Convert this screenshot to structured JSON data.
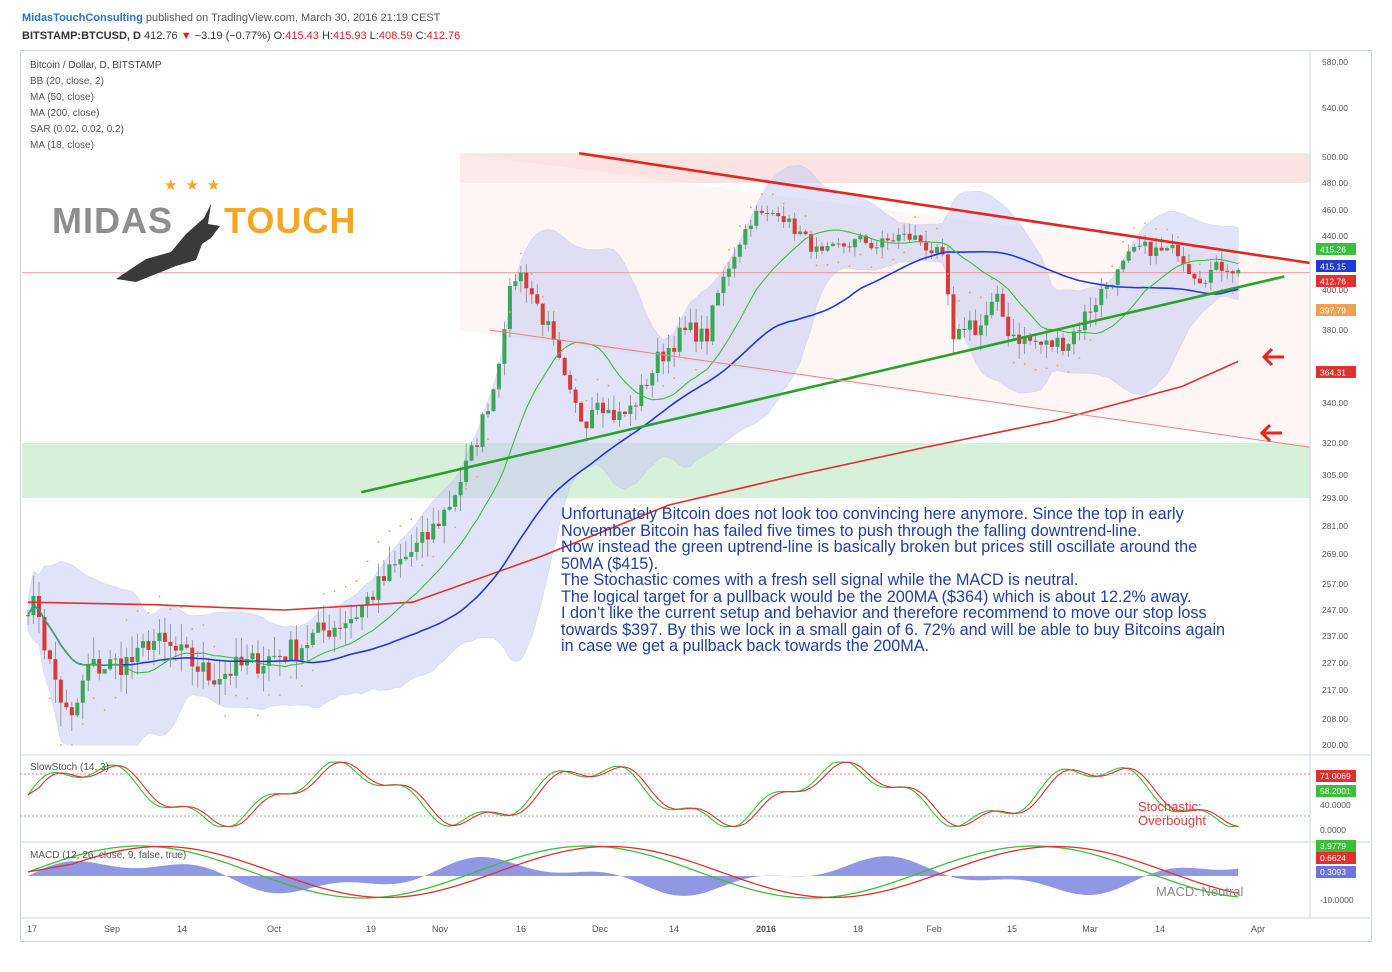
{
  "header": {
    "author": "MidasTouchConsulting",
    "published": "published on TradingView.com, March 30, 2016 21:19 CEST",
    "symbol": "BITSTAMP:BTCUSD, D",
    "last": "412.76",
    "change_symbol": "▼",
    "change": "−3.19 (−0.77%)",
    "o_label": "O:",
    "o_value": "415.43",
    "h_label": "H:",
    "h_value": "415.93",
    "l_label": "L:",
    "l_value": "408.59",
    "c_label": "C:",
    "c_value": "412.76"
  },
  "legend": {
    "title": "Bitcoin / Dollar, D, BITSTAMP",
    "items": [
      "BB (20, close, 2)",
      "MA (50, close)",
      "MA (200, close)",
      "SAR (0.02, 0.02, 0.2)",
      "MA (18, close)"
    ]
  },
  "logo": {
    "left": "MIDAS",
    "right": "TOUCH",
    "stars": "★★★"
  },
  "annotation": [
    "Unfortunately Bitcoin does not look too convincing here anymore. Since the top in early November Bitcoin has failed five times to push through the falling downtrend-line.",
    "Now instead the green uptrend-line is basically broken but prices still oscillate around the 50MA ($415).",
    "The Stochastic comes with a fresh sell signal while the MACD is neutral.",
    "The logical target for a pullback would be the 200MA ($364) which is about 12.2% away.",
    "I don't like the current setup and behavior and therefore recommend to move our stop loss towards $397. By this we lock in a small gain of 6. 72% and will be able to buy Bitcoins again in case we get a pullback back towards the 200MA."
  ],
  "stoch": {
    "label": "SlowStoch (14, 3)",
    "note_line1": "Stochastic:",
    "note_line2": "Overbought"
  },
  "macd": {
    "label": "MACD (12, 26, close, 9, false, true)",
    "note": "MACD: Neutral"
  },
  "colors": {
    "up": "#3aa757",
    "down": "#d83a3a",
    "ma50": "#1f3bd6",
    "ma200": "#e03030",
    "ma18": "#3bbf3b",
    "bb_fill": "#c9cdf3",
    "resistance": "#e8251b",
    "support": "#2aa22a",
    "zone_red": "#fbdcdc",
    "zone_green": "#d3eed6",
    "sar": "#f0a050",
    "annotation": "#1e3fa5"
  },
  "chart_data": {
    "type": "candlestick",
    "title": "Bitcoin / Dollar, D, BITSTAMP",
    "ylim": [
      200,
      580
    ],
    "y_ticks": [
      "580.00",
      "540.00",
      "500.00",
      "480.00",
      "460.00",
      "440.00",
      "420.00",
      "400.00",
      "380.00",
      "360.00",
      "340.00",
      "320.00",
      "305.00",
      "293.00",
      "281.00",
      "269.00",
      "257.00",
      "247.00",
      "237.00",
      "227.00",
      "217.00",
      "208.00",
      "200.00"
    ],
    "x_ticks": [
      "17",
      "Sep",
      "14",
      "Oct",
      "19",
      "Nov",
      "16",
      "Dec",
      "14",
      "2016",
      "18",
      "Feb",
      "15",
      "Mar",
      "14",
      "Apr"
    ],
    "price_labels": [
      {
        "text": "415.26",
        "value": 415.26,
        "color": "#3bbf3b"
      },
      {
        "text": "415.15",
        "value": 415.15,
        "color": "#1f3bd6"
      },
      {
        "text": "412.76",
        "value": 412.76,
        "color": "#e03030"
      },
      {
        "text": "397.79",
        "value": 397.79,
        "color": "#f0a050"
      },
      {
        "text": "364.31",
        "value": 364.31,
        "color": "#e03030"
      }
    ],
    "trend_lines": [
      {
        "name": "resistance",
        "from": [
          0.43,
          503
        ],
        "to": [
          1.0,
          420
        ]
      },
      {
        "name": "support",
        "from": [
          0.26,
          296
        ],
        "to": [
          0.98,
          410
        ]
      }
    ],
    "zones": [
      {
        "name": "top",
        "low": 480,
        "high": 503
      },
      {
        "name": "bottom",
        "low": 293,
        "high": 320
      }
    ],
    "stoch": {
      "ylim": [
        0,
        100
      ],
      "y_ticks": [
        "71.0069",
        "58.2001",
        "40.0000",
        "0.0000"
      ],
      "levels": [
        80,
        20
      ]
    },
    "macd": {
      "y_ticks": [
        "3.9779",
        "0.6624",
        "0.3093",
        "-10.0000"
      ]
    }
  }
}
